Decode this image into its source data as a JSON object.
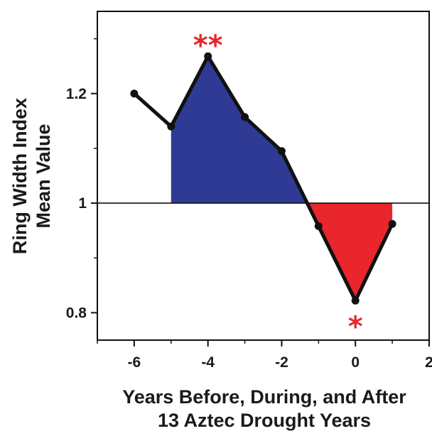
{
  "chart_data": {
    "type": "line",
    "title": "",
    "xlabel_lines": [
      "Years Before, During, and After",
      "13 Aztec Drought Years"
    ],
    "ylabel_lines": [
      "Ring Width Index",
      "Mean Value"
    ],
    "xlim": [
      -7,
      2
    ],
    "ylim": [
      0.75,
      1.35
    ],
    "x_ticks": [
      -6,
      -4,
      -2,
      0,
      2
    ],
    "y_ticks": [
      0.8,
      1,
      1.2
    ],
    "x_tick_labels": [
      "-6",
      "-4",
      "-2",
      "0",
      "2"
    ],
    "y_tick_labels": [
      "0.8",
      "1",
      "1.2"
    ],
    "reference_line": 1.0,
    "grid": false,
    "series": [
      {
        "x": [
          -6,
          -5,
          -4,
          -3,
          -2,
          -1,
          0,
          1
        ],
        "values": [
          1.2,
          1.14,
          1.268,
          1.157,
          1.095,
          0.958,
          0.822,
          0.962
        ],
        "color": "#111111"
      }
    ],
    "fill_above_color": "#2e3a93",
    "fill_below_color": "#e8262b",
    "annotations": [
      {
        "text": "**",
        "x": -4,
        "position": "above",
        "color": "#e8262b"
      },
      {
        "text": "*",
        "x": 0,
        "position": "below",
        "color": "#e8262b"
      }
    ]
  }
}
